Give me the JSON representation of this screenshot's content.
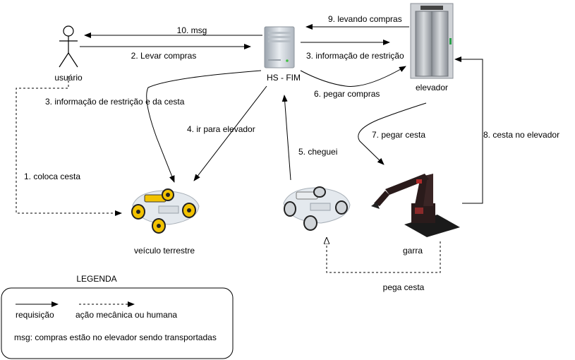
{
  "nodes": {
    "user": "usuário",
    "server": "HS - FIM",
    "elevator": "elevador",
    "vehicle": "veículo terrestre",
    "claw": "garra"
  },
  "edges": {
    "msg": "10. msg",
    "levar_compras": "2. Levar compras",
    "levando_compras": "9. levando compras",
    "info_restricao": "3. informação de restrição",
    "info_restricao_cesta": "3. informação de restrição e da cesta",
    "pegar_compras": "6. pegar compras",
    "ir_elevador": "4. ir para elevador",
    "cheguei": "5. cheguei",
    "pegar_cesta": "7. pegar cesta",
    "cesta_elevador": "8. cesta no elevador",
    "coloca_cesta": "1. coloca cesta",
    "pega_cesta": "pega cesta"
  },
  "legend": {
    "title": "LEGENDA",
    "requisicao": "requisição",
    "acao": "ação mecânica ou humana",
    "msg_note": "msg: compras estão no elevador sendo transportadas"
  },
  "colors": {
    "line": "#000000",
    "elevator_frame": "#d86a2a",
    "vehicle_wheel": "#f2c200",
    "claw_body": "#2a1b1b"
  }
}
